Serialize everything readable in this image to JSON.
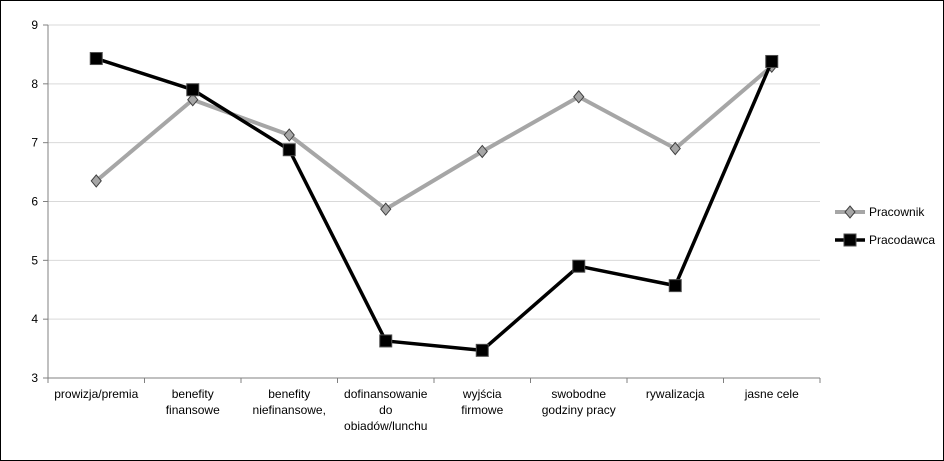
{
  "chart_data": {
    "type": "line",
    "categories": [
      [
        "prowizja/premia"
      ],
      [
        "benefity",
        "finansowe"
      ],
      [
        "benefity",
        "niefinansowe,"
      ],
      [
        "dofinansowanie",
        "do",
        "obiadów/lunchu"
      ],
      [
        "wyjścia",
        "firmowe"
      ],
      [
        "swobodne",
        "godziny pracy"
      ],
      [
        "rywalizacja"
      ],
      [
        "jasne cele"
      ]
    ],
    "series": [
      {
        "name": "Pracownik",
        "color": "#a6a6a6",
        "marker": "diamond",
        "values": [
          6.35,
          7.73,
          7.13,
          5.87,
          6.85,
          7.78,
          6.9,
          8.3
        ]
      },
      {
        "name": "Pracodawca",
        "color": "#000000",
        "marker": "square",
        "values": [
          8.43,
          7.9,
          6.88,
          3.63,
          3.47,
          4.9,
          4.57,
          8.38
        ]
      }
    ],
    "ylim": [
      3,
      9
    ],
    "yticks": [
      "3",
      "4",
      "5",
      "6",
      "7",
      "8",
      "9"
    ],
    "grid": true,
    "legend_position": "right"
  }
}
